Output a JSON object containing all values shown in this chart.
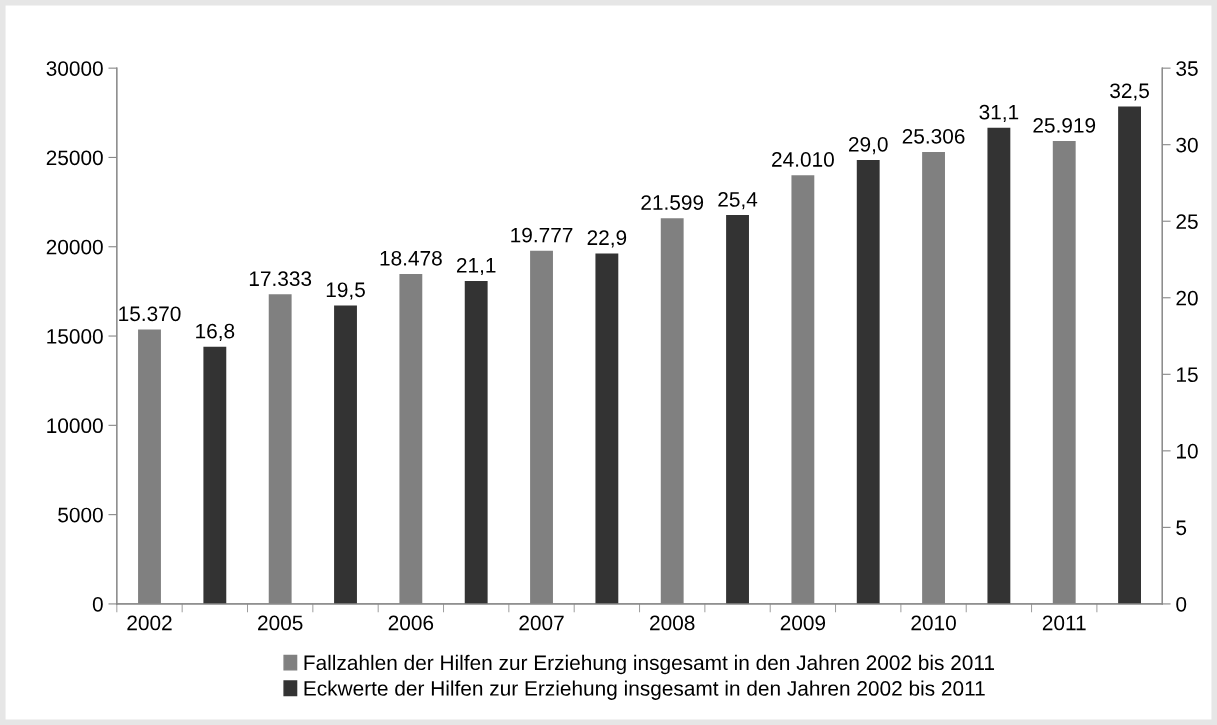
{
  "chart_data": {
    "type": "bar",
    "categories": [
      "2002",
      null,
      "2005",
      null,
      "2006",
      null,
      "2007",
      null,
      "2008",
      null,
      "2009",
      null,
      "2010",
      null,
      "2011",
      null
    ],
    "series": [
      {
        "name": "Fallzahlen der Hilfen zur Erziehung insgesamt in den Jahren 2002 bis 2011",
        "color": "#808080",
        "values": [
          15370,
          null,
          17333,
          null,
          18478,
          null,
          19777,
          null,
          21599,
          null,
          24010,
          null,
          25306,
          null,
          25919,
          null
        ],
        "value_labels": [
          "15.370",
          null,
          "17.333",
          null,
          "18.478",
          null,
          "19.777",
          null,
          "21.599",
          null,
          "24.010",
          null,
          "25.306",
          null,
          "25.919",
          null
        ]
      },
      {
        "name": "Eckwerte der Hilfen zur Erziehung insgesamt in den Jahren 2002 bis 2011",
        "color": "#333333",
        "axis": "y2",
        "values": [
          null,
          16.8,
          null,
          19.5,
          null,
          21.1,
          null,
          22.9,
          null,
          25.4,
          null,
          29.0,
          null,
          31.1,
          null,
          32.5
        ],
        "value_labels": [
          null,
          "16,8",
          null,
          "19,5",
          null,
          "21,1",
          null,
          "22,9",
          null,
          "25,4",
          null,
          "29,0",
          null,
          "31,1",
          null,
          "32,5"
        ]
      }
    ],
    "ylim": [
      0,
      30000
    ],
    "yticks": [
      0,
      5000,
      10000,
      15000,
      20000,
      25000,
      30000
    ],
    "y2lim": [
      0,
      35
    ],
    "y2ticks": [
      0,
      5,
      10,
      15,
      20,
      25,
      30,
      35
    ],
    "grid": false,
    "legend": "bottom"
  }
}
